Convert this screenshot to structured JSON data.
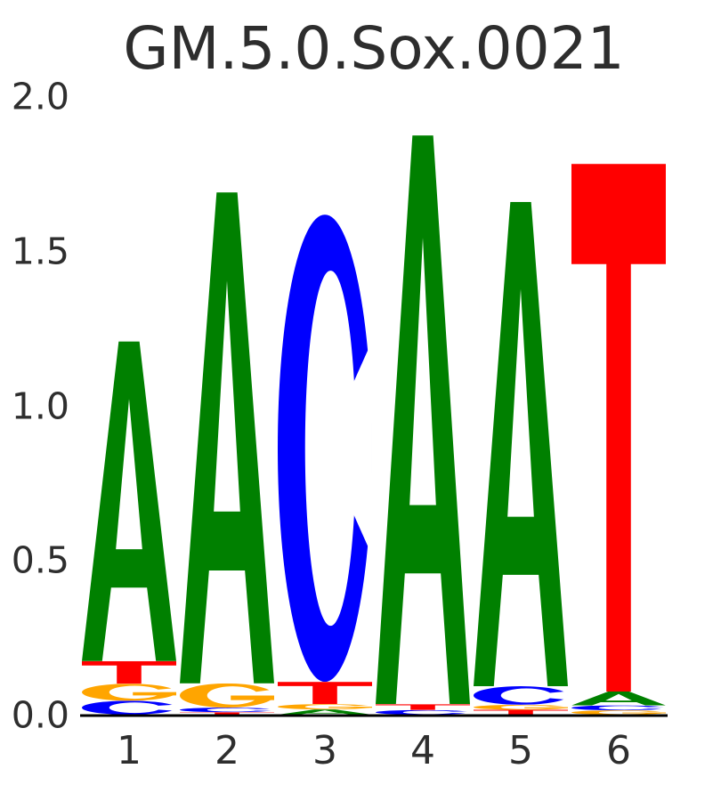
{
  "title": "GM.5.0.Sox.0021",
  "chart_data": {
    "type": "sequence-logo",
    "title": "GM.5.0.Sox.0021",
    "consensus": "AACAAT",
    "alphabet": [
      "A",
      "C",
      "G",
      "T"
    ],
    "x_tick_labels": [
      "1",
      "2",
      "3",
      "4",
      "5",
      "6"
    ],
    "y_tick_labels": [
      "0.0",
      "0.5",
      "1.0",
      "1.5",
      "2.0"
    ],
    "ylim": [
      0.0,
      2.0
    ],
    "grid": false,
    "letter_colors": {
      "A": "#008000",
      "C": "#0000ff",
      "G": "#ffa500",
      "T": "#ff0000"
    },
    "axis_color": "#000000",
    "text_color": "#2d2d2d",
    "positions": [
      {
        "position": 1,
        "total_bits": 1.207,
        "stack_bottom_to_top": [
          {
            "letter": "C",
            "height": 0.045
          },
          {
            "letter": "G",
            "height": 0.055
          },
          {
            "letter": "T",
            "height": 0.073
          },
          {
            "letter": "A",
            "height": 1.034
          }
        ]
      },
      {
        "position": 2,
        "total_bits": 1.689,
        "stack_bottom_to_top": [
          {
            "letter": "T",
            "height": 0.008
          },
          {
            "letter": "C",
            "height": 0.015
          },
          {
            "letter": "G",
            "height": 0.078
          },
          {
            "letter": "A",
            "height": 1.588
          }
        ]
      },
      {
        "position": 3,
        "total_bits": 1.617,
        "stack_bottom_to_top": [
          {
            "letter": "A",
            "height": 0.017
          },
          {
            "letter": "G",
            "height": 0.017
          },
          {
            "letter": "T",
            "height": 0.072
          },
          {
            "letter": "C",
            "height": 1.511
          }
        ]
      },
      {
        "position": 4,
        "total_bits": 1.873,
        "stack_bottom_to_top": [
          {
            "letter": "C",
            "height": 0.015
          },
          {
            "letter": "T",
            "height": 0.019
          },
          {
            "letter": "A",
            "height": 1.839
          }
        ]
      },
      {
        "position": 5,
        "total_bits": 1.658,
        "stack_bottom_to_top": [
          {
            "letter": "T",
            "height": 0.016
          },
          {
            "letter": "G",
            "height": 0.016
          },
          {
            "letter": "C",
            "height": 0.06
          },
          {
            "letter": "A",
            "height": 1.566
          }
        ]
      },
      {
        "position": 6,
        "total_bits": 1.781,
        "stack_bottom_to_top": [
          {
            "letter": "G",
            "height": 0.014
          },
          {
            "letter": "C",
            "height": 0.016
          },
          {
            "letter": "A",
            "height": 0.045
          },
          {
            "letter": "T",
            "height": 1.706
          }
        ]
      }
    ]
  }
}
